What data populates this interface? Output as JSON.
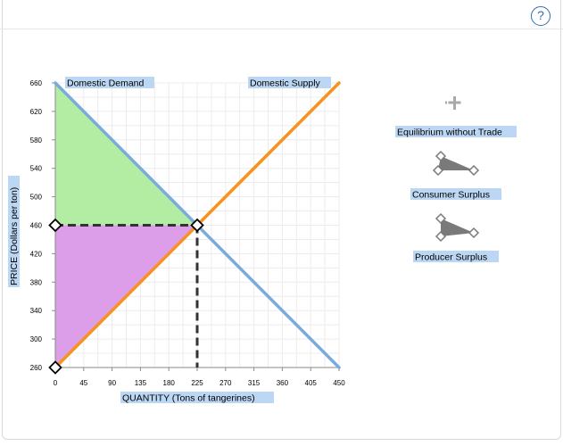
{
  "help_label": "?",
  "chart_data": {
    "type": "line",
    "xlabel": "QUANTITY (Tons of tangerines)",
    "ylabel": "PRICE (Dollars per ton)",
    "xlim": [
      0,
      450
    ],
    "ylim": [
      260,
      660
    ],
    "x_ticks": [
      0,
      45,
      90,
      135,
      180,
      225,
      270,
      315,
      360,
      405,
      450
    ],
    "y_ticks": [
      260,
      300,
      340,
      380,
      420,
      460,
      500,
      540,
      580,
      620,
      660
    ],
    "grid": true,
    "series": [
      {
        "name": "Domestic Demand",
        "color": "#7aabdb",
        "points": [
          [
            0,
            660
          ],
          [
            450,
            260
          ]
        ]
      },
      {
        "name": "Domestic Supply",
        "color": "#f7921e",
        "points": [
          [
            0,
            260
          ],
          [
            450,
            660
          ]
        ]
      }
    ],
    "equilibrium": {
      "x": 225,
      "y": 460
    },
    "points": [
      {
        "name": "p-eq",
        "x": 225,
        "y": 460
      },
      {
        "name": "p-price-axis",
        "x": 0,
        "y": 460
      },
      {
        "name": "p-origin",
        "x": 0,
        "y": 260
      }
    ],
    "areas": [
      {
        "name": "Consumer Surplus",
        "color": "#b3eda4",
        "points": [
          [
            0,
            660
          ],
          [
            225,
            460
          ],
          [
            0,
            460
          ]
        ]
      },
      {
        "name": "Producer Surplus",
        "color": "#dc9ee8",
        "points": [
          [
            0,
            460
          ],
          [
            225,
            460
          ],
          [
            0,
            260
          ]
        ]
      }
    ],
    "dashed_lines": [
      {
        "from": [
          0,
          460
        ],
        "to": [
          225,
          460
        ]
      },
      {
        "from": [
          225,
          460
        ],
        "to": [
          225,
          260
        ]
      }
    ]
  },
  "palette": {
    "items": [
      {
        "label": "Equilibrium without Trade",
        "icon": "plus-point-icon"
      },
      {
        "label": "Consumer Surplus",
        "icon": "triangle-tool-icon"
      },
      {
        "label": "Producer Surplus",
        "icon": "triangle-tool-icon"
      }
    ]
  }
}
